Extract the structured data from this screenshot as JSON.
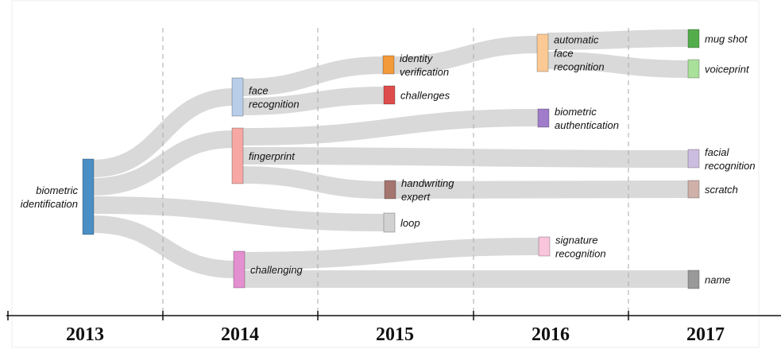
{
  "nodes": [
    {
      "label": [
        "biometric",
        "identification"
      ],
      "color": "#4a8ec4"
    },
    {
      "label": [
        "face",
        "recognition"
      ],
      "color": "#b8cde8"
    },
    {
      "label": [
        "fingerprint"
      ],
      "color": "#f7a8a4"
    },
    {
      "label": [
        "challenging"
      ],
      "color": "#e48fd0"
    },
    {
      "label": [
        "identity",
        "verification"
      ],
      "color": "#f39a3b"
    },
    {
      "label": [
        "challenges"
      ],
      "color": "#dd4d4b"
    },
    {
      "label": [
        "handwriting",
        "expert"
      ],
      "color": "#a5756f"
    },
    {
      "label": [
        "loop"
      ],
      "color": "#d2d2d2"
    },
    {
      "label": [
        "automatic",
        "face",
        "recognition"
      ],
      "color": "#fcc995"
    },
    {
      "label": [
        "biometric",
        "authentication"
      ],
      "color": "#a07ccb"
    },
    {
      "label": [
        "signature",
        "recognition"
      ],
      "color": "#f8c5dc"
    },
    {
      "label": [
        "mug shot"
      ],
      "color": "#54ad4b"
    },
    {
      "label": [
        "voiceprint"
      ],
      "color": "#a9e09a"
    },
    {
      "label": [
        "facial",
        "recognition"
      ],
      "color": "#cbbde0"
    },
    {
      "label": [
        "scratch"
      ],
      "color": "#cfb1aa"
    },
    {
      "label": [
        "name"
      ],
      "color": "#999999"
    }
  ],
  "links": [
    [
      0,
      1
    ],
    [
      0,
      2
    ],
    [
      0,
      7
    ],
    [
      0,
      3
    ],
    [
      1,
      4
    ],
    [
      1,
      5
    ],
    [
      2,
      9
    ],
    [
      2,
      13
    ],
    [
      2,
      6
    ],
    [
      3,
      10
    ],
    [
      3,
      15
    ],
    [
      4,
      8
    ],
    [
      8,
      11
    ],
    [
      8,
      12
    ],
    [
      6,
      14
    ]
  ],
  "years": [
    "2013",
    "2014",
    "2015",
    "2016",
    "2017"
  ]
}
